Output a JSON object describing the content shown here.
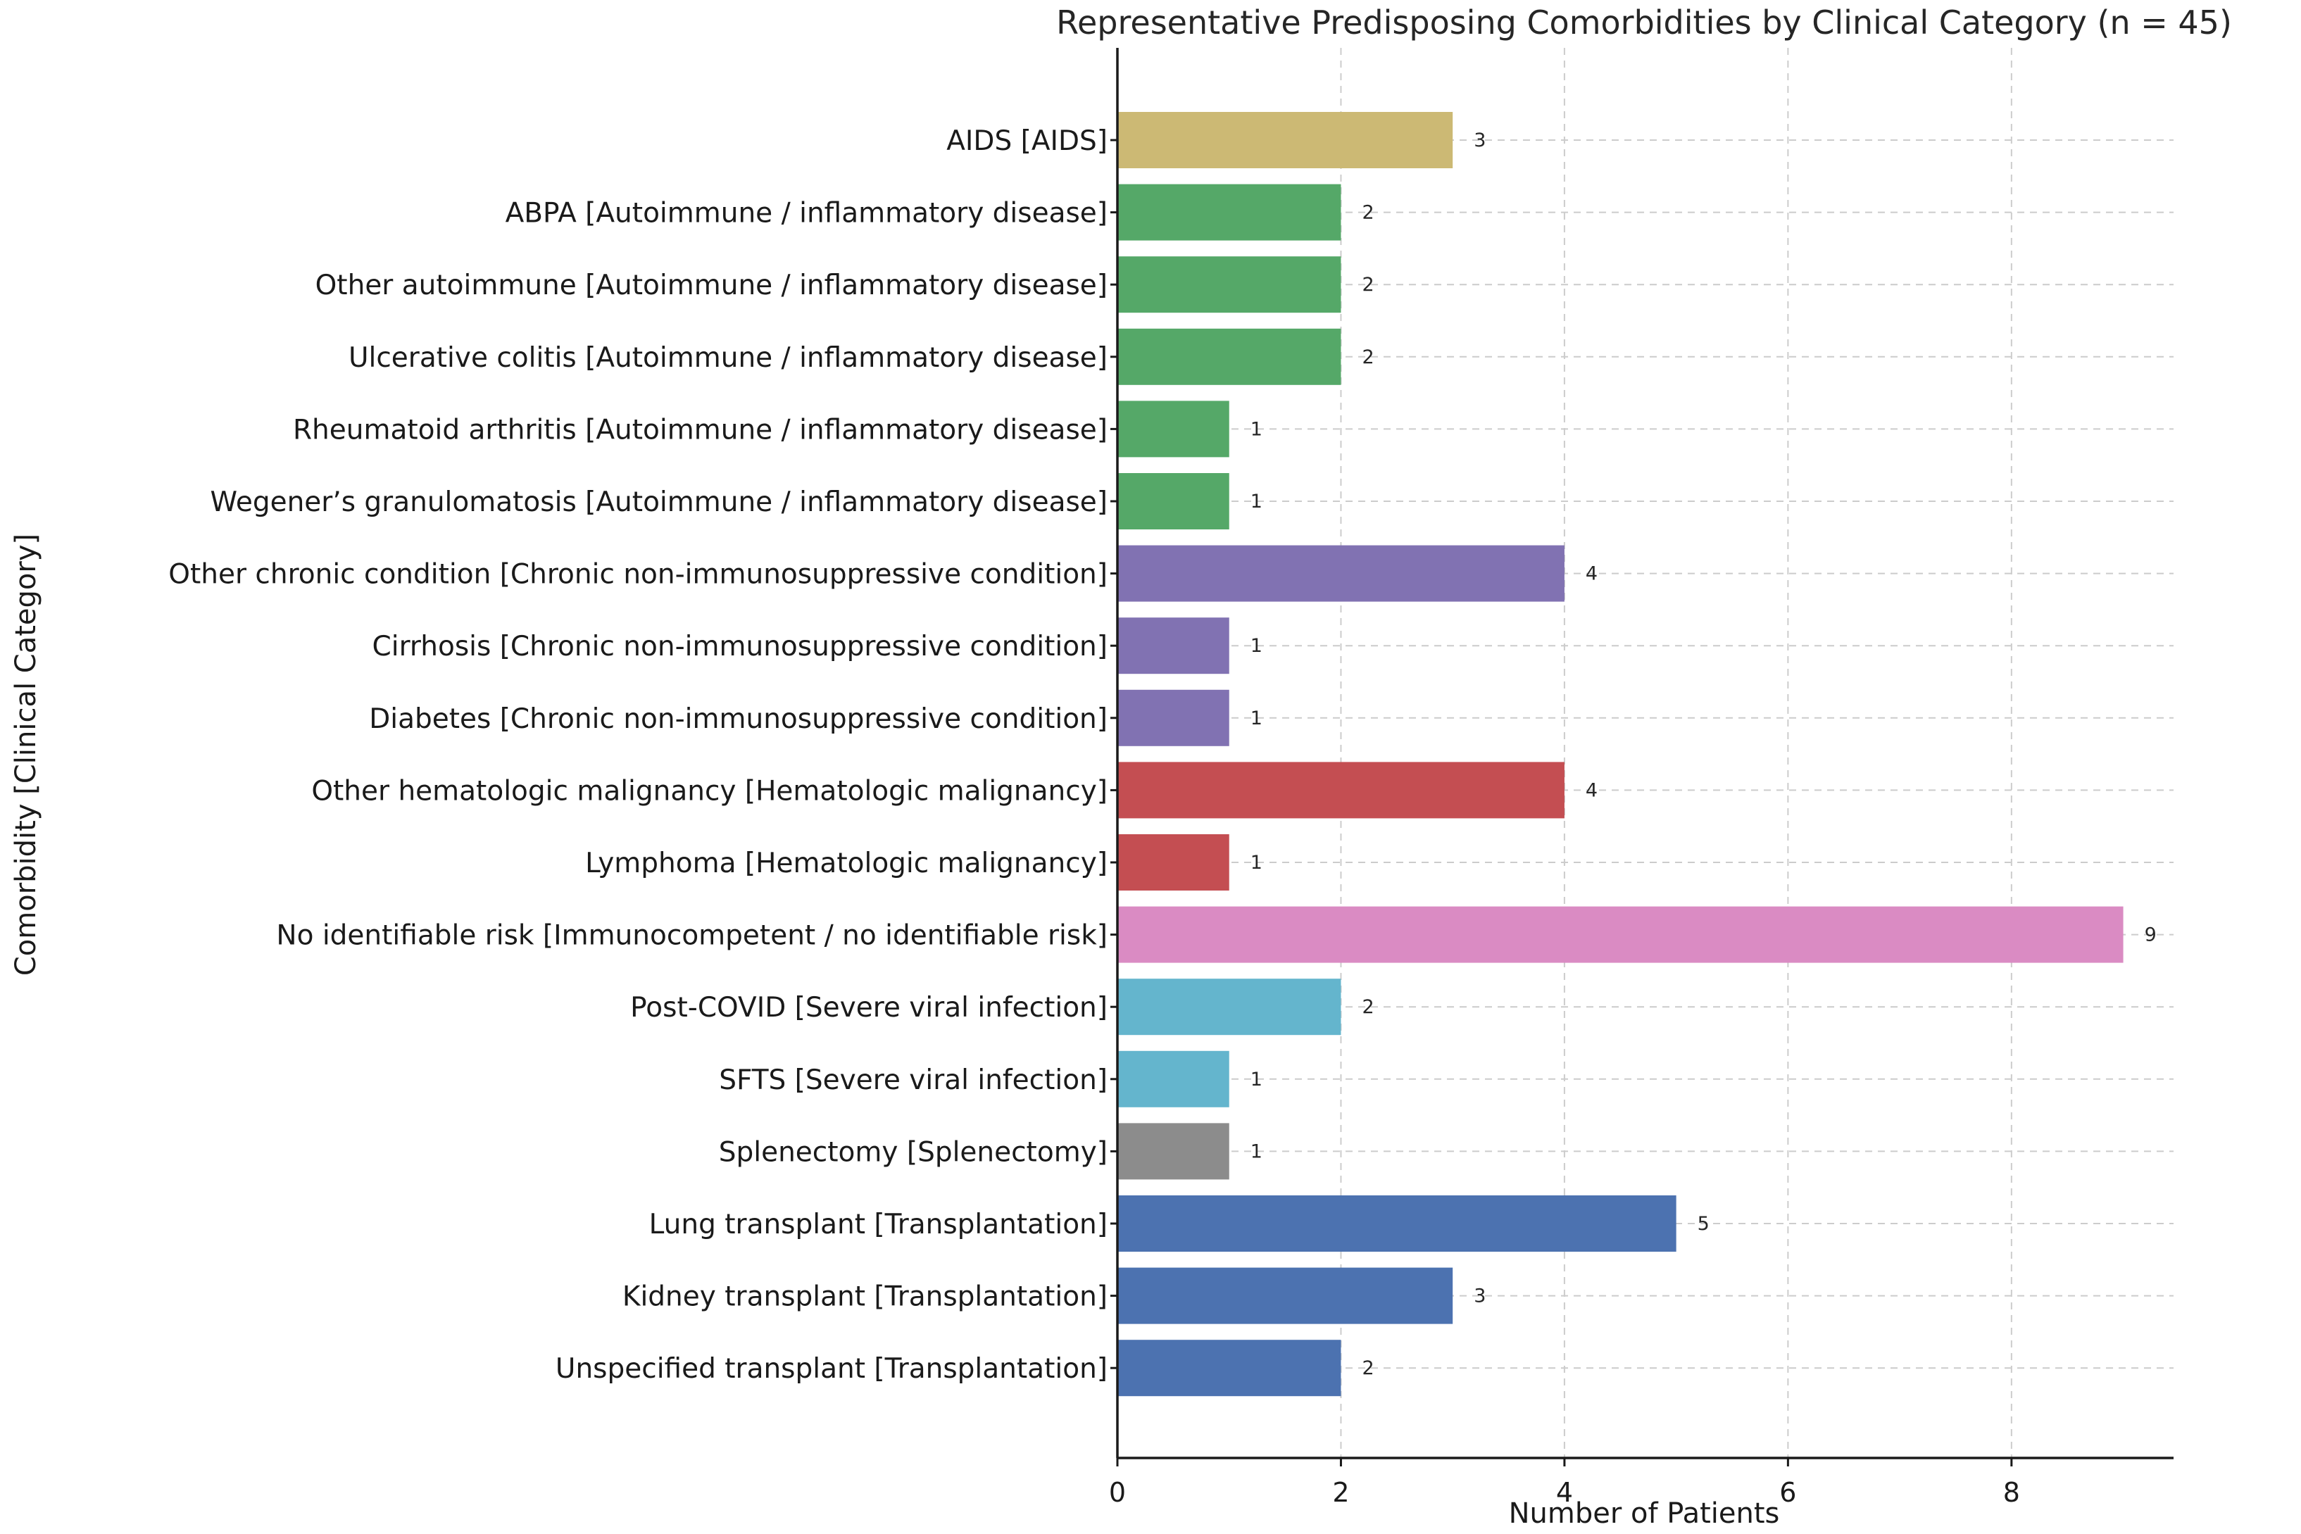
{
  "chart_data": {
    "type": "bar",
    "orientation": "horizontal",
    "title": "Representative Predisposing Comorbidities by Clinical Category (n = 45)",
    "xlabel": "Number of Patients",
    "ylabel": "Comorbidity [Clinical Category]",
    "xlim": [
      0,
      9.45
    ],
    "xticks": [
      0,
      2,
      4,
      6,
      8
    ],
    "grid": true,
    "categories": [
      "AIDS [AIDS]",
      "ABPA [Autoimmune / inflammatory disease]",
      "Other autoimmune [Autoimmune / inflammatory disease]",
      "Ulcerative colitis [Autoimmune / inflammatory disease]",
      "Rheumatoid arthritis [Autoimmune / inflammatory disease]",
      "Wegener’s granulomatosis [Autoimmune / inflammatory disease]",
      "Other chronic condition [Chronic non-immunosuppressive condition]",
      "Cirrhosis [Chronic non-immunosuppressive condition]",
      "Diabetes [Chronic non-immunosuppressive condition]",
      "Other hematologic malignancy [Hematologic malignancy]",
      "Lymphoma [Hematologic malignancy]",
      "No identifiable risk [Immunocompetent / no identifiable risk]",
      "Post-COVID [Severe viral infection]",
      "SFTS [Severe viral infection]",
      "Splenectomy [Splenectomy]",
      "Lung transplant [Transplantation]",
      "Kidney transplant [Transplantation]",
      "Unspecified transplant [Transplantation]"
    ],
    "values": [
      3,
      2,
      2,
      2,
      1,
      1,
      4,
      1,
      1,
      4,
      1,
      9,
      2,
      1,
      1,
      5,
      3,
      2
    ],
    "colors": [
      "#ccb974",
      "#55a868",
      "#55a868",
      "#55a868",
      "#55a868",
      "#55a868",
      "#8172b2",
      "#8172b2",
      "#8172b2",
      "#c44e52",
      "#c44e52",
      "#da8bc3",
      "#64b5cd",
      "#64b5cd",
      "#8c8c8c",
      "#4c72b0",
      "#4c72b0",
      "#4c72b0"
    ]
  }
}
